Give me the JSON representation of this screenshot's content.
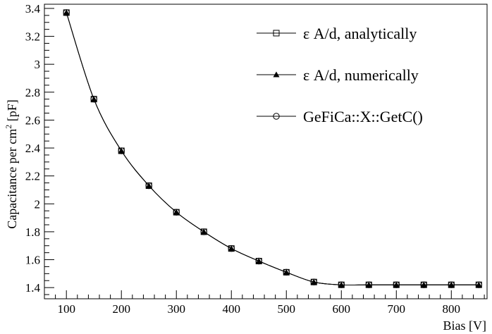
{
  "chart_data": {
    "type": "line",
    "title": "",
    "xlabel": "Bias [V]",
    "ylabel": "Capacitance per cm",
    "ylabel_sup": "2",
    "ylabel_unit": " [pF]",
    "xlim": [
      60,
      865
    ],
    "ylim": [
      1.32,
      3.43
    ],
    "xticks": [
      100,
      200,
      300,
      400,
      500,
      600,
      700,
      800
    ],
    "yticks": [
      1.4,
      1.6,
      1.8,
      2,
      2.2,
      2.4,
      2.6,
      2.8,
      3,
      3.2,
      3.4
    ],
    "x": [
      100,
      150,
      200,
      250,
      300,
      350,
      400,
      450,
      500,
      550,
      600,
      650,
      700,
      750,
      800,
      850
    ],
    "series": [
      {
        "name": "ε A/d, analytically",
        "marker": "open-square",
        "values": [
          3.37,
          2.75,
          2.38,
          2.13,
          1.94,
          1.8,
          1.68,
          1.59,
          1.51,
          1.44,
          1.42,
          1.42,
          1.42,
          1.42,
          1.42,
          1.42
        ]
      },
      {
        "name": "ε A/d, numerically",
        "marker": "filled-triangle",
        "values": [
          3.37,
          2.75,
          2.38,
          2.13,
          1.94,
          1.8,
          1.68,
          1.59,
          1.51,
          1.44,
          1.42,
          1.42,
          1.42,
          1.42,
          1.42,
          1.42
        ]
      },
      {
        "name": "GeFiCa::X::GetC()",
        "marker": "open-circle",
        "values": [
          3.37,
          2.75,
          2.38,
          2.13,
          1.94,
          1.8,
          1.68,
          1.59,
          1.51,
          1.44,
          1.42,
          1.42,
          1.42,
          1.42,
          1.42,
          1.42
        ]
      }
    ],
    "legend_position": "top-right",
    "grid": false,
    "colors": {
      "line": "#000000",
      "marker": "#000000",
      "background": "#ffffff"
    }
  }
}
